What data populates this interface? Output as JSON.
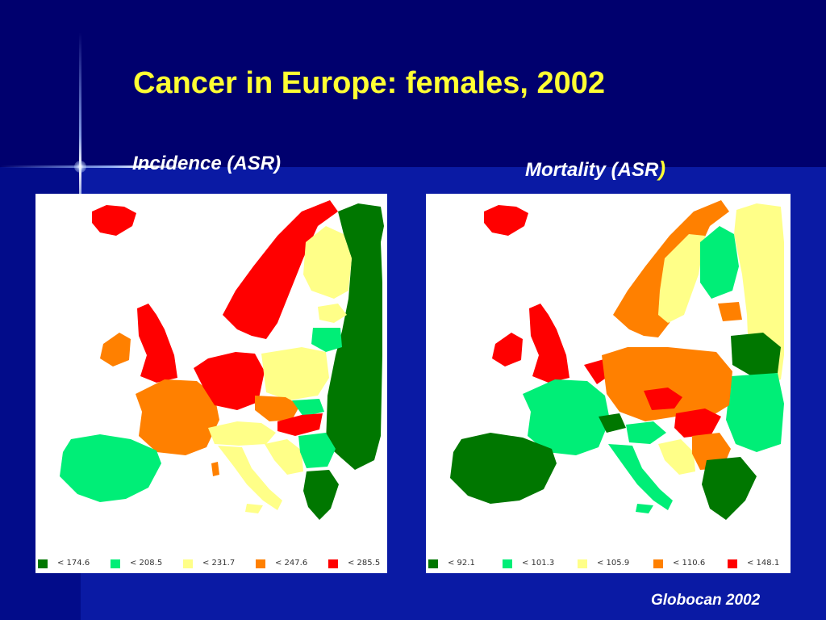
{
  "slide": {
    "title": "Cancer in Europe: females, 2002",
    "incidence_label": "Incidence (ASR)",
    "mortality_label": "Mortality (ASR",
    "mortality_paren": ")",
    "credit": "Globocan 2002"
  },
  "colors": {
    "dark_green": "#007700",
    "light_green": "#00ee77",
    "light_yellow": "#ffff88",
    "orange": "#ff8000",
    "red": "#ff0000"
  },
  "legend_left": [
    {
      "label": "<  174.6",
      "color": "#007700"
    },
    {
      "label": "<  208.5",
      "color": "#00ee77"
    },
    {
      "label": "<  231.7",
      "color": "#ffff88"
    },
    {
      "label": "<  247.6",
      "color": "#ff8000"
    },
    {
      "label": "<  285.5",
      "color": "#ff0000"
    }
  ],
  "legend_right": [
    {
      "label": "<  92.1",
      "color": "#007700"
    },
    {
      "label": "<  101.3",
      "color": "#00ee77"
    },
    {
      "label": "<  105.9",
      "color": "#ffff88"
    },
    {
      "label": "<  110.6",
      "color": "#ff8000"
    },
    {
      "label": "<  148.1",
      "color": "#ff0000"
    }
  ]
}
